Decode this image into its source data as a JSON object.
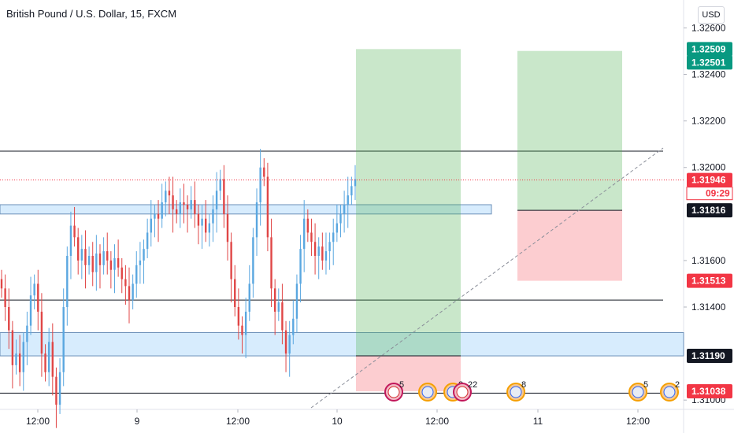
{
  "title": "British Pound / U.S. Dollar, 15, FXCM",
  "currency_button": "USD",
  "chart_data": {
    "type": "candlestick",
    "symbol": "British Pound / U.S. Dollar",
    "interval": "15",
    "source": "FXCM",
    "y_axis": {
      "ticks": [
        1.31,
        1.314,
        1.316,
        1.32,
        1.322,
        1.324,
        1.326
      ],
      "tick_labels": [
        "1.31000",
        "1.31400",
        "1.31600",
        "1.32000",
        "1.32200",
        "1.32400",
        "1.32600"
      ],
      "range": [
        1.3096,
        1.3272
      ]
    },
    "x_axis": {
      "tick_labels": [
        "12:00",
        "9",
        "12:00",
        "10",
        "12:00",
        "11",
        "12:00"
      ]
    },
    "current_price": 1.31946,
    "countdown": "09:29",
    "price_tags": [
      {
        "price": 1.32509,
        "text": "1.32509",
        "bg": "#089981"
      },
      {
        "price": 1.32501,
        "text": "1.32501",
        "bg": "#089981"
      },
      {
        "price": 1.31946,
        "text": "1.31946",
        "bg": "#f23645"
      },
      {
        "price": 1.31816,
        "text": "1.31816",
        "bg": "#131722"
      },
      {
        "price": 1.31513,
        "text": "1.31513",
        "bg": "#f23645"
      },
      {
        "price": 1.3119,
        "text": "1.31190",
        "bg": "#131722"
      },
      {
        "price": 1.31038,
        "text": "1.31038",
        "bg": "#f23645"
      }
    ],
    "horizontal_lines": [
      1.3207,
      1.3143,
      1.3103
    ],
    "zones": [
      {
        "label": "resistance zone",
        "top": 1.3184,
        "bottom": 1.318
      },
      {
        "label": "support zone",
        "top": 1.3129,
        "bottom": 1.3119
      }
    ],
    "positions": [
      {
        "type": "long",
        "entry": 1.3119,
        "target": 1.32509,
        "stop": 1.31038
      },
      {
        "type": "short",
        "entry": 1.31816,
        "target": 1.32501,
        "stop": 1.31513
      }
    ],
    "event_markers": [
      {
        "flag": "GB",
        "count": "5"
      },
      {
        "flag": "US",
        "count": ""
      },
      {
        "flag": "US",
        "count": "2"
      },
      {
        "flag": "GB",
        "count": "22"
      },
      {
        "flag": "US",
        "count": "8"
      },
      {
        "flag": "US",
        "count": "5"
      },
      {
        "flag": "US",
        "count": "2"
      }
    ],
    "candles_close": [
      1.3148,
      1.314,
      1.313,
      1.3115,
      1.312,
      1.3112,
      1.3125,
      1.3132,
      1.3145,
      1.315,
      1.3138,
      1.312,
      1.3112,
      1.3125,
      1.311,
      1.3098,
      1.3112,
      1.314,
      1.3162,
      1.3175,
      1.317,
      1.316,
      1.3165,
      1.3158,
      1.3162,
      1.3155,
      1.3163,
      1.3158,
      1.3164,
      1.316,
      1.3156,
      1.3161,
      1.3157,
      1.3152,
      1.3149,
      1.3143,
      1.315,
      1.3158,
      1.316,
      1.3165,
      1.3172,
      1.3178,
      1.318,
      1.3178,
      1.3185,
      1.319,
      1.3188,
      1.3182,
      1.318,
      1.3185,
      1.3184,
      1.3182,
      1.3186,
      1.318,
      1.3175,
      1.3178,
      1.3172,
      1.3176,
      1.3182,
      1.319,
      1.3195,
      1.318,
      1.3168,
      1.3152,
      1.314,
      1.3132,
      1.3128,
      1.3138,
      1.315,
      1.317,
      1.3185,
      1.32,
      1.3196,
      1.317,
      1.3148,
      1.3138,
      1.3142,
      1.313,
      1.312,
      1.3128,
      1.3135,
      1.315,
      1.3165,
      1.3178,
      1.3172,
      1.3168,
      1.3162,
      1.3166,
      1.316,
      1.3164,
      1.3168,
      1.3172,
      1.3176,
      1.318,
      1.3184,
      1.3188,
      1.3192,
      1.3195
    ]
  }
}
